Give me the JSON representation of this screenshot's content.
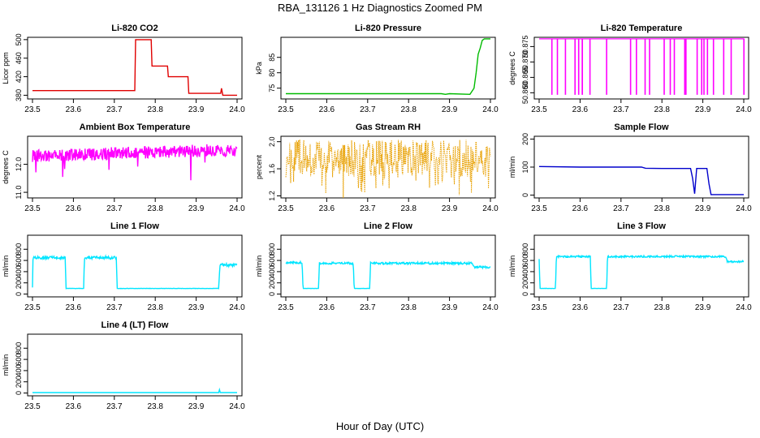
{
  "title": "RBA_131126  1 Hz Diagnostics Zoomed PM",
  "xlabel": "Hour of Day (UTC)",
  "chart_data": [
    {
      "type": "line",
      "title": "Li-820 CO2",
      "ylabel": "Licor ppm",
      "xlim": [
        23.5,
        24.0
      ],
      "ylim": [
        372,
        505
      ],
      "xticks": [
        "23.5",
        "23.6",
        "23.7",
        "23.8",
        "23.9",
        "24.0"
      ],
      "yticks": [
        "380",
        "420",
        "460",
        "500"
      ],
      "color": "#e00000",
      "series": [
        {
          "x": [
            23.5,
            23.75,
            23.752,
            23.79,
            23.792,
            23.83,
            23.832,
            23.88,
            23.882,
            23.96,
            23.962,
            23.965,
            23.97,
            24.0
          ],
          "y": [
            390,
            390,
            500,
            500,
            443,
            443,
            420,
            420,
            384,
            384,
            395,
            380,
            380,
            380
          ]
        }
      ]
    },
    {
      "type": "line",
      "title": "Li-820 Pressure",
      "ylabel": "kPa",
      "xlim": [
        23.5,
        24.0
      ],
      "ylim": [
        71.5,
        91.5
      ],
      "xticks": [
        "23.5",
        "23.6",
        "23.7",
        "23.8",
        "23.9",
        "24.0"
      ],
      "yticks": [
        "75",
        "80",
        "85"
      ],
      "color": "#00bb00",
      "series": [
        {
          "x": [
            23.5,
            23.88,
            23.89,
            23.9,
            23.95,
            23.96,
            23.965,
            23.97,
            23.975,
            23.98,
            23.985,
            24.0
          ],
          "y": [
            73.2,
            73.2,
            73.0,
            73.2,
            73.0,
            75,
            80,
            86,
            88,
            90.5,
            91,
            91
          ]
        }
      ]
    },
    {
      "type": "line",
      "title": "Li-820 Temperature",
      "ylabel": "degrees C",
      "xlim": [
        23.5,
        24.0
      ],
      "ylim": [
        50.858,
        50.878
      ],
      "xticks": [
        "23.5",
        "23.6",
        "23.7",
        "23.8",
        "23.9",
        "24.0"
      ],
      "yticks": [
        "50.860",
        "50.865",
        "50.870",
        "50.875"
      ],
      "color": "#ff00ff",
      "series": [
        {
          "note_levels": [
            50.8595,
            50.8775
          ]
        }
      ]
    },
    {
      "type": "line",
      "title": "Ambient Box Temperature",
      "ylabel": "degrees C",
      "xlim": [
        23.5,
        24.0
      ],
      "ylim": [
        10.8,
        13.0
      ],
      "xticks": [
        "23.5",
        "23.6",
        "23.7",
        "23.8",
        "23.9",
        "24.0"
      ],
      "yticks": [
        "11.0",
        "12.0"
      ],
      "color": "#ff00ff",
      "series": [
        {
          "x": [
            23.5,
            23.55,
            23.6,
            23.65,
            23.7,
            23.75,
            23.8,
            23.85,
            23.9,
            23.95,
            24.0
          ],
          "y": [
            12.3,
            12.3,
            12.35,
            12.35,
            12.4,
            12.4,
            12.45,
            12.45,
            12.5,
            12.5,
            12.5
          ]
        }
      ]
    },
    {
      "type": "line",
      "title": "Gas Stream RH",
      "ylabel": "percent",
      "xlim": [
        23.5,
        24.0
      ],
      "ylim": [
        1.17,
        2.08
      ],
      "xticks": [
        "23.5",
        "23.6",
        "23.7",
        "23.8",
        "23.9",
        "24.0"
      ],
      "yticks": [
        "1.2",
        "1.6",
        "2.0"
      ],
      "color": "#e8a000",
      "series": [
        {
          "x": [
            23.5,
            24.0
          ],
          "y": [
            1.75,
            1.75
          ]
        }
      ]
    },
    {
      "type": "line",
      "title": "Sample Flow",
      "ylabel": "ml/min",
      "xlim": [
        23.5,
        24.0
      ],
      "ylim": [
        -10,
        210
      ],
      "xticks": [
        "23.5",
        "23.6",
        "23.7",
        "23.8",
        "23.9",
        "24.0"
      ],
      "yticks": [
        "0",
        "100",
        "200"
      ],
      "color": "#0000cc",
      "series": [
        {
          "x": [
            23.5,
            23.6,
            23.75,
            23.76,
            23.8,
            23.87,
            23.875,
            23.88,
            23.885,
            23.91,
            23.915,
            23.92,
            24.0
          ],
          "y": [
            102,
            100,
            100,
            96,
            95,
            95,
            60,
            5,
            95,
            95,
            40,
            2,
            2
          ]
        }
      ]
    },
    {
      "type": "line",
      "title": "Line 1 Flow",
      "ylabel": "ml/min",
      "xlim": [
        23.5,
        24.0
      ],
      "ylim": [
        -50,
        1050
      ],
      "xticks": [
        "23.5",
        "23.6",
        "23.7",
        "23.8",
        "23.9",
        "24.0"
      ],
      "yticks": [
        "0",
        "200",
        "400",
        "600",
        "800"
      ],
      "color": "#00e5ff",
      "series": [
        {
          "x": [
            23.5,
            23.5,
            23.502,
            23.58,
            23.582,
            23.625,
            23.627,
            23.705,
            23.707,
            23.955,
            23.958,
            24.0
          ],
          "y": [
            120,
            600,
            650,
            650,
            100,
            100,
            650,
            650,
            100,
            100,
            520,
            520
          ]
        }
      ]
    },
    {
      "type": "line",
      "title": "Line 2 Flow",
      "ylabel": "ml/min",
      "xlim": [
        23.5,
        24.0
      ],
      "ylim": [
        -50,
        1050
      ],
      "xticks": [
        "23.5",
        "23.6",
        "23.7",
        "23.8",
        "23.9",
        "24.0"
      ],
      "yticks": [
        "0",
        "200",
        "400",
        "600",
        "800"
      ],
      "color": "#00e5ff",
      "series": [
        {
          "x": [
            23.5,
            23.54,
            23.542,
            23.58,
            23.582,
            23.665,
            23.667,
            23.705,
            23.707,
            23.955,
            23.96,
            24.0
          ],
          "y": [
            560,
            560,
            100,
            100,
            550,
            550,
            100,
            100,
            550,
            550,
            480,
            480
          ]
        }
      ]
    },
    {
      "type": "line",
      "title": "Line 3 Flow",
      "ylabel": "ml/min",
      "xlim": [
        23.5,
        24.0
      ],
      "ylim": [
        -50,
        1050
      ],
      "xticks": [
        "23.5",
        "23.6",
        "23.7",
        "23.8",
        "23.9",
        "24.0"
      ],
      "yticks": [
        "0",
        "200",
        "400",
        "600",
        "800"
      ],
      "color": "#00e5ff",
      "series": [
        {
          "x": [
            23.5,
            23.5,
            23.502,
            23.54,
            23.542,
            23.625,
            23.627,
            23.665,
            23.667,
            23.955,
            23.96,
            24.0
          ],
          "y": [
            640,
            640,
            100,
            100,
            670,
            670,
            100,
            100,
            670,
            670,
            580,
            580
          ]
        }
      ]
    },
    {
      "type": "line",
      "title": "Line 4 (LT) Flow",
      "ylabel": "ml/min",
      "xlim": [
        23.5,
        24.0
      ],
      "ylim": [
        -50,
        1050
      ],
      "xticks": [
        "23.5",
        "23.6",
        "23.7",
        "23.8",
        "23.9",
        "24.0"
      ],
      "yticks": [
        "0",
        "200",
        "400",
        "600",
        "800"
      ],
      "color": "#00e5ff",
      "series": [
        {
          "x": [
            23.5,
            23.955,
            23.957,
            23.959,
            24.0
          ],
          "y": [
            8,
            8,
            60,
            8,
            8
          ]
        }
      ]
    }
  ]
}
